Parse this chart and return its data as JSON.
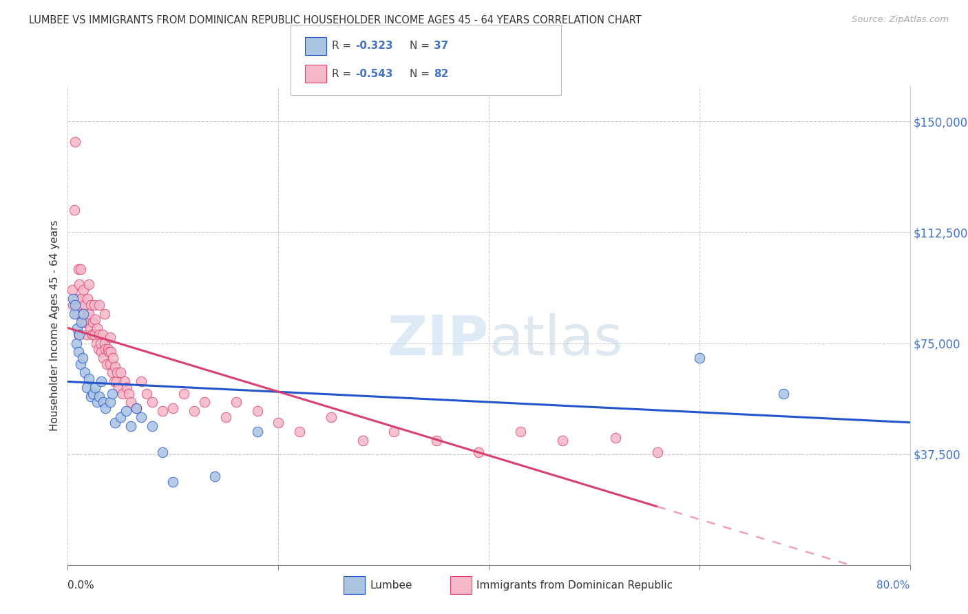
{
  "title": "LUMBEE VS IMMIGRANTS FROM DOMINICAN REPUBLIC HOUSEHOLDER INCOME AGES 45 - 64 YEARS CORRELATION CHART",
  "source": "Source: ZipAtlas.com",
  "ylabel": "Householder Income Ages 45 - 64 years",
  "ytick_labels": [
    "$37,500",
    "$75,000",
    "$112,500",
    "$150,000"
  ],
  "ytick_values": [
    37500,
    75000,
    112500,
    150000
  ],
  "ymin": 0,
  "ymax": 162000,
  "xmin": 0.0,
  "xmax": 0.8,
  "color_lumbee": "#aac4e2",
  "color_dr": "#f5b8c8",
  "color_lumbee_line": "#2255cc",
  "color_dr_line": "#d94070",
  "color_dr_dashed": "#f0a0b8",
  "lumbee_x": [
    0.005,
    0.006,
    0.007,
    0.008,
    0.009,
    0.01,
    0.011,
    0.012,
    0.013,
    0.014,
    0.015,
    0.016,
    0.018,
    0.02,
    0.022,
    0.024,
    0.026,
    0.028,
    0.03,
    0.032,
    0.034,
    0.036,
    0.04,
    0.042,
    0.045,
    0.05,
    0.055,
    0.06,
    0.065,
    0.07,
    0.08,
    0.09,
    0.1,
    0.14,
    0.18,
    0.6,
    0.68
  ],
  "lumbee_y": [
    90000,
    85000,
    88000,
    75000,
    80000,
    72000,
    78000,
    68000,
    82000,
    70000,
    85000,
    65000,
    60000,
    63000,
    57000,
    58000,
    60000,
    55000,
    57000,
    62000,
    55000,
    53000,
    55000,
    58000,
    48000,
    50000,
    52000,
    47000,
    53000,
    50000,
    47000,
    38000,
    28000,
    30000,
    45000,
    70000,
    58000
  ],
  "dr_x": [
    0.004,
    0.005,
    0.006,
    0.007,
    0.008,
    0.009,
    0.01,
    0.01,
    0.01,
    0.011,
    0.012,
    0.013,
    0.014,
    0.015,
    0.015,
    0.016,
    0.017,
    0.018,
    0.019,
    0.02,
    0.02,
    0.021,
    0.022,
    0.023,
    0.024,
    0.025,
    0.025,
    0.026,
    0.027,
    0.028,
    0.029,
    0.03,
    0.03,
    0.031,
    0.032,
    0.033,
    0.034,
    0.035,
    0.035,
    0.036,
    0.037,
    0.038,
    0.039,
    0.04,
    0.04,
    0.041,
    0.042,
    0.043,
    0.044,
    0.045,
    0.046,
    0.047,
    0.048,
    0.05,
    0.052,
    0.054,
    0.056,
    0.058,
    0.06,
    0.065,
    0.07,
    0.075,
    0.08,
    0.09,
    0.1,
    0.11,
    0.12,
    0.13,
    0.15,
    0.16,
    0.18,
    0.2,
    0.22,
    0.25,
    0.28,
    0.31,
    0.35,
    0.39,
    0.43,
    0.47,
    0.52,
    0.56
  ],
  "dr_y": [
    93000,
    88000,
    120000,
    143000,
    90000,
    85000,
    100000,
    88000,
    78000,
    95000,
    100000,
    90000,
    82000,
    93000,
    85000,
    88000,
    82000,
    78000,
    90000,
    85000,
    95000,
    80000,
    88000,
    78000,
    82000,
    88000,
    78000,
    83000,
    75000,
    80000,
    73000,
    78000,
    88000,
    75000,
    72000,
    78000,
    70000,
    75000,
    85000,
    73000,
    68000,
    73000,
    72000,
    68000,
    77000,
    72000,
    65000,
    70000,
    62000,
    67000,
    62000,
    65000,
    60000,
    65000,
    58000,
    62000,
    60000,
    58000,
    55000,
    53000,
    62000,
    58000,
    55000,
    52000,
    53000,
    58000,
    52000,
    55000,
    50000,
    55000,
    52000,
    48000,
    45000,
    50000,
    42000,
    45000,
    42000,
    38000,
    45000,
    42000,
    43000,
    38000
  ]
}
